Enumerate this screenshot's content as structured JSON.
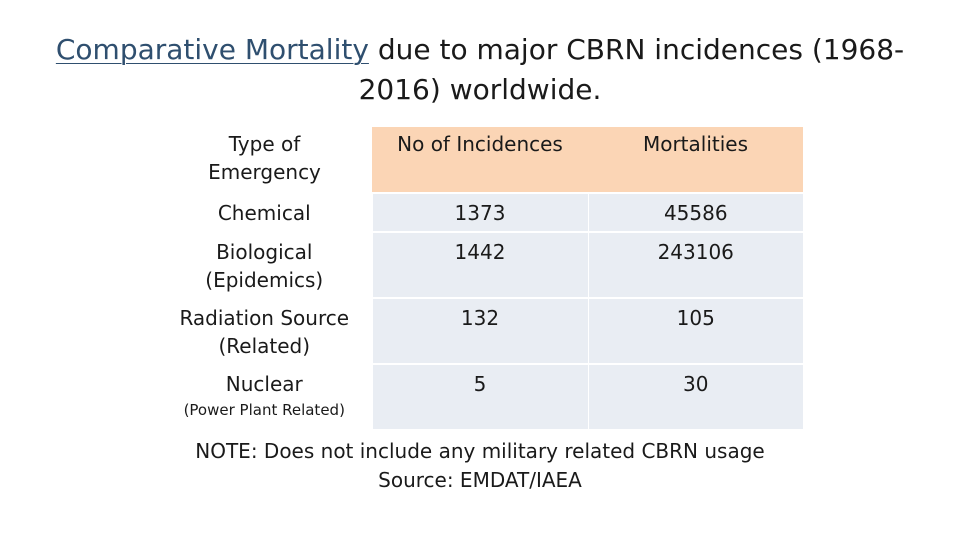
{
  "title": {
    "link_text": "Comparative Mortality",
    "rest_line1": " due to major CBRN incidences (1968-",
    "rest_line2": "2016) worldwide."
  },
  "table": {
    "headers": [
      "Type of Emergency",
      "No of Incidences",
      "Mortalities"
    ],
    "rows": [
      {
        "type": "Chemical",
        "sub": "",
        "incidences": "1373",
        "mortalities": "45586"
      },
      {
        "type": "Biological (Epidemics)",
        "sub": "",
        "incidences": "1442",
        "mortalities": "243106"
      },
      {
        "type": "Radiation Source (Related)",
        "sub": "",
        "incidences": "132",
        "mortalities": "105"
      },
      {
        "type": "Nuclear",
        "sub": "(Power Plant Related)",
        "incidences": "5",
        "mortalities": "30"
      }
    ]
  },
  "footer": {
    "note": "NOTE: Does not include any military related  CBRN usage",
    "source": "Source: EMDAT/IAEA"
  },
  "colors": {
    "header_fill": "#fbd5b5",
    "row_fill": "#e9edf3",
    "link": "#2f4f6f"
  }
}
